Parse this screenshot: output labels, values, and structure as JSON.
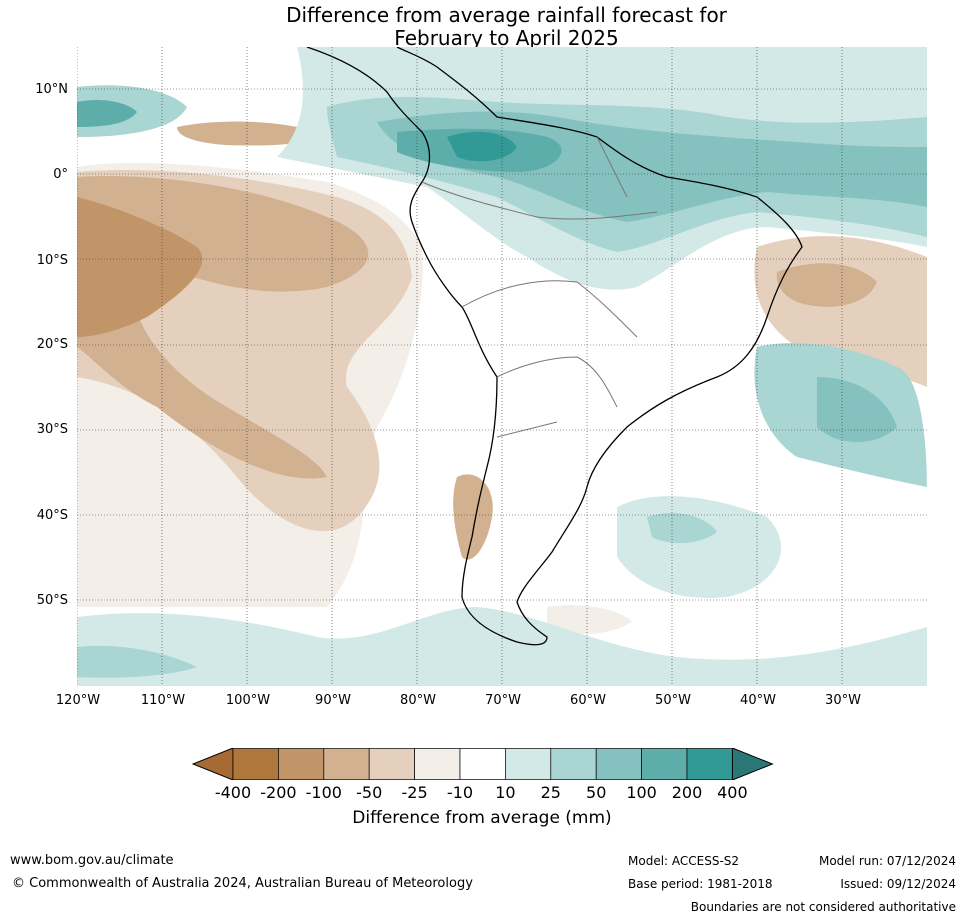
{
  "title_line1": "Difference from average rainfall forecast for",
  "title_line2": "February to April 2025",
  "lat_labels": [
    "10°N",
    "0°",
    "10°S",
    "20°S",
    "30°S",
    "40°S",
    "50°S"
  ],
  "lon_labels": [
    "120°W",
    "110°W",
    "100°W",
    "90°W",
    "80°W",
    "70°W",
    "60°W",
    "50°W",
    "40°W",
    "30°W"
  ],
  "colorbar": {
    "title": "Difference from average (mm)",
    "ticks": [
      "-400",
      "-200",
      "-100",
      "-50",
      "-25",
      "-10",
      "10",
      "25",
      "50",
      "100",
      "200",
      "400"
    ],
    "colors": [
      "#a86a35",
      "#b0773d",
      "#c29568",
      "#d2b191",
      "#e5d0bd",
      "#f3eee7",
      "#ffffff",
      "#d3e9e7",
      "#a9d5d3",
      "#85c2bf",
      "#5dadaa",
      "#329a96",
      "#2a7875"
    ]
  },
  "footer": {
    "website": "www.bom.gov.au/climate",
    "copyright": "© Commonwealth of Australia 2024, Australian Bureau of Meteorology",
    "model": "Model: ACCESS-S2",
    "base_period": "Base period: 1981-2018",
    "model_run": "Model run: 07/12/2024",
    "issued": "Issued: 09/12/2024",
    "disclaimer": "Boundaries are not considered authoritative"
  }
}
